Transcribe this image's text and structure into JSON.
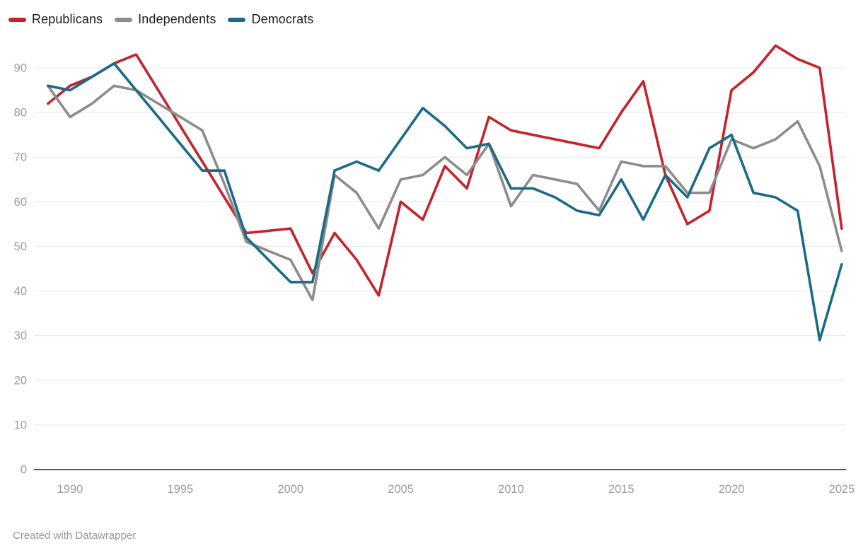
{
  "chart_data": {
    "type": "line",
    "x": [
      1989,
      1990,
      1991,
      1992,
      1993,
      1994,
      1995,
      1996,
      1997,
      1998,
      1999,
      2000,
      2001,
      2002,
      2003,
      2004,
      2005,
      2006,
      2007,
      2008,
      2009,
      2010,
      2011,
      2012,
      2013,
      2014,
      2015,
      2016,
      2017,
      2018,
      2019,
      2020,
      2021,
      2022,
      2023,
      2024,
      2025
    ],
    "series": [
      {
        "name": "Republicans",
        "color": "#c4232c",
        "values": [
          82,
          86,
          88,
          91,
          93,
          85,
          77,
          69,
          61,
          53,
          53.5,
          54,
          44,
          53,
          47,
          39,
          60,
          56,
          68,
          63,
          79,
          76,
          75,
          74,
          73,
          72,
          80,
          87,
          66,
          55,
          58,
          85,
          89,
          95,
          92,
          90,
          54
        ]
      },
      {
        "name": "Independents",
        "color": "#8c8c8c",
        "values": [
          86,
          79,
          82,
          86,
          85,
          82,
          79,
          76,
          64,
          51,
          49,
          47,
          38,
          66,
          62,
          54,
          65,
          66,
          70,
          66,
          73,
          59,
          66,
          65,
          64,
          58,
          69,
          68,
          68,
          62,
          62,
          74,
          72,
          74,
          78,
          68,
          49
        ]
      },
      {
        "name": "Democrats",
        "color": "#1b6b86",
        "values": [
          86,
          85,
          88,
          91,
          85,
          79,
          73,
          67,
          67,
          52,
          47,
          42,
          42,
          67,
          69,
          67,
          74,
          81,
          77,
          72,
          73,
          63,
          63,
          61,
          58,
          57,
          65,
          56,
          66,
          61,
          72,
          75,
          62,
          61,
          58,
          29,
          46
        ]
      }
    ],
    "title": "",
    "xlabel": "",
    "ylabel": "",
    "ylim": [
      0,
      97
    ],
    "y_ticks": [
      0,
      10,
      20,
      30,
      40,
      50,
      60,
      70,
      80,
      90
    ],
    "x_ticks": [
      1990,
      1995,
      2000,
      2005,
      2010,
      2015,
      2020,
      2025
    ],
    "grid": "horizontal",
    "legend_position": "top-left"
  },
  "style": {
    "grid_color": "#e9e9e9",
    "baseline_color": "#1a1a1a",
    "tick_label_color": "#9c9c9c",
    "legend_text_color": "#1c1c1c"
  },
  "footer": {
    "credit": "Created with Datawrapper"
  }
}
